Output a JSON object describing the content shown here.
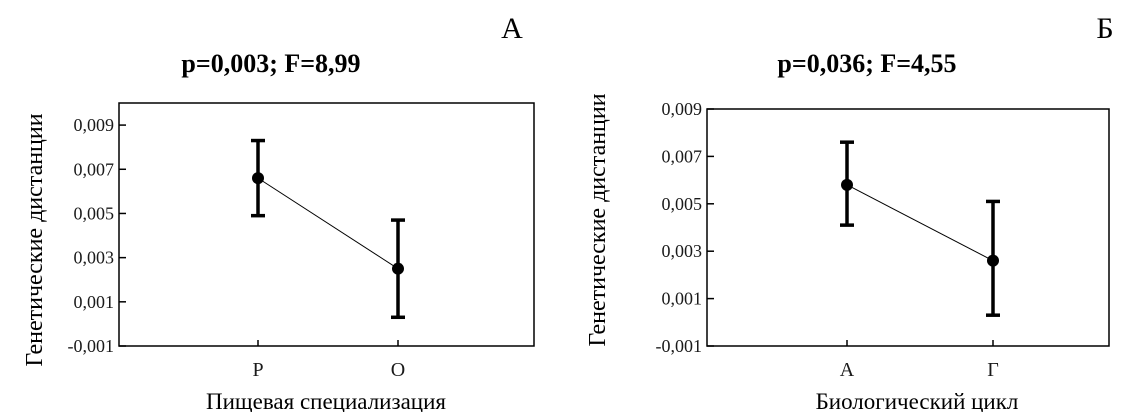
{
  "chart_data": [
    {
      "type": "scatter",
      "panel_label": "А",
      "title": "p=0,003; F=8,99",
      "xlabel": "Пищевая специализация",
      "ylabel": "Генетические дистанции",
      "categories": [
        "Р",
        "О"
      ],
      "series": [
        {
          "values": [
            0.0066,
            0.0025
          ],
          "error_low": [
            0.0049,
            0.0003
          ],
          "error_high": [
            0.0083,
            0.0047
          ]
        }
      ],
      "ylim": [
        -0.001,
        0.01
      ],
      "yticks": [
        "0,009",
        "0,007",
        "0,005",
        "0,003",
        "0,001",
        "-0,001"
      ],
      "ytick_values": [
        0.009,
        0.007,
        0.005,
        0.003,
        0.001,
        -0.001
      ],
      "grid": false,
      "error_bars": true,
      "connect_means": true
    },
    {
      "type": "scatter",
      "panel_label": "Б",
      "title": "p=0,036; F=4,55",
      "xlabel": "Биологический цикл",
      "ylabel": "Генетические дистанции",
      "categories": [
        "А",
        "Г"
      ],
      "series": [
        {
          "values": [
            0.0058,
            0.0026
          ],
          "error_low": [
            0.0041,
            0.0003
          ],
          "error_high": [
            0.0076,
            0.0051
          ]
        }
      ],
      "ylim": [
        -0.001,
        0.009
      ],
      "yticks": [
        "0,009",
        "0,007",
        "0,005",
        "0,003",
        "0,001",
        "-0,001"
      ],
      "ytick_values": [
        0.009,
        0.007,
        0.005,
        0.003,
        0.001,
        -0.001
      ],
      "grid": false,
      "error_bars": true,
      "connect_means": true
    }
  ],
  "colors": {
    "ink": "#000000",
    "axis_text": "#1a1a1a",
    "background": "#ffffff"
  }
}
